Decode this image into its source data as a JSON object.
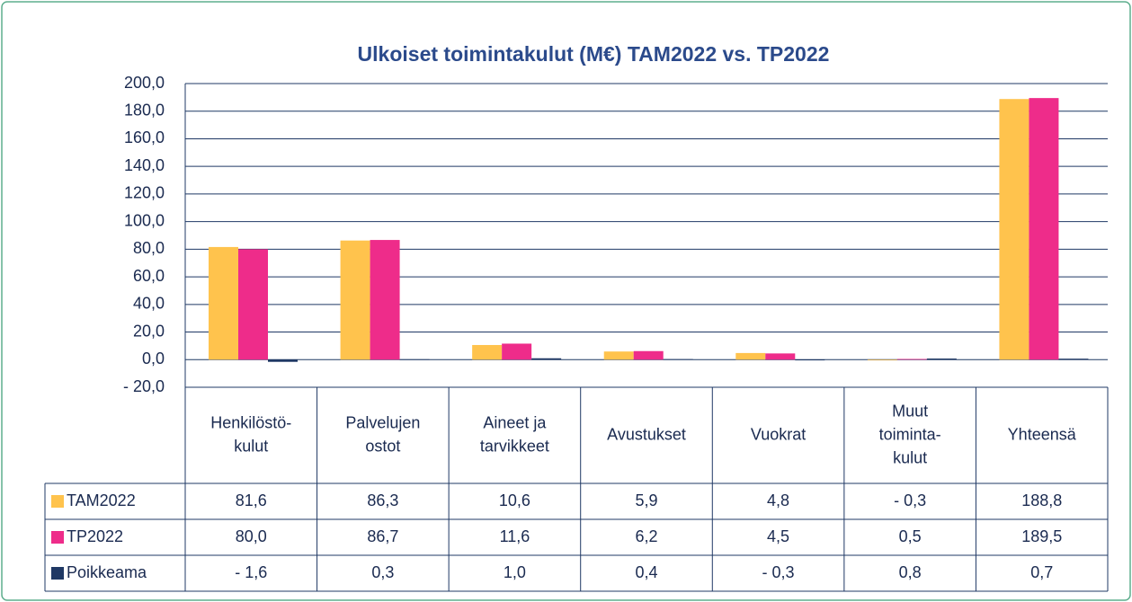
{
  "chart_data": {
    "type": "bar",
    "title": "Ulkoiset toimintakulut (M€) TAM2022 vs. TP2022",
    "categories": [
      [
        "Henkilöstö-",
        "kulut"
      ],
      [
        "Palvelujen",
        "ostot"
      ],
      [
        "Aineet ja",
        "tarvikkeet"
      ],
      [
        "Avustukset"
      ],
      [
        "Vuokrat"
      ],
      [
        "Muut",
        "toiminta-",
        "kulut"
      ],
      [
        "Yhteensä"
      ]
    ],
    "series": [
      {
        "name": "TAM2022",
        "color": "#ffc34d",
        "values": [
          81.6,
          86.3,
          10.6,
          5.9,
          4.8,
          -0.3,
          188.8
        ],
        "value_labels": [
          "81,6",
          "86,3",
          "10,6",
          "5,9",
          "4,8",
          "- 0,3",
          "188,8"
        ]
      },
      {
        "name": "TP2022",
        "color": "#ee2c8a",
        "values": [
          80.0,
          86.7,
          11.6,
          6.2,
          4.5,
          0.5,
          189.5
        ],
        "value_labels": [
          "80,0",
          "86,7",
          "11,6",
          "6,2",
          "4,5",
          "0,5",
          "189,5"
        ]
      },
      {
        "name": "Poikkeama",
        "color": "#1f3864",
        "values": [
          -1.6,
          0.3,
          1.0,
          0.4,
          -0.3,
          0.8,
          0.7
        ],
        "value_labels": [
          "- 1,6",
          "0,3",
          "1,0",
          "0,4",
          "- 0,3",
          "0,8",
          "0,7"
        ]
      }
    ],
    "ylim": [
      -20,
      200
    ],
    "yticks": [
      {
        "value": 200,
        "label": "200,0"
      },
      {
        "value": 180,
        "label": "180,0"
      },
      {
        "value": 160,
        "label": "160,0"
      },
      {
        "value": 140,
        "label": "140,0"
      },
      {
        "value": 120,
        "label": "120,0"
      },
      {
        "value": 100,
        "label": "100,0"
      },
      {
        "value": 80,
        "label": "80,0"
      },
      {
        "value": 60,
        "label": "60,0"
      },
      {
        "value": 40,
        "label": "40,0"
      },
      {
        "value": 20,
        "label": "20,0"
      },
      {
        "value": 0,
        "label": "0,0"
      },
      {
        "value": -20,
        "label": "- 20,0"
      }
    ],
    "grid": true
  }
}
